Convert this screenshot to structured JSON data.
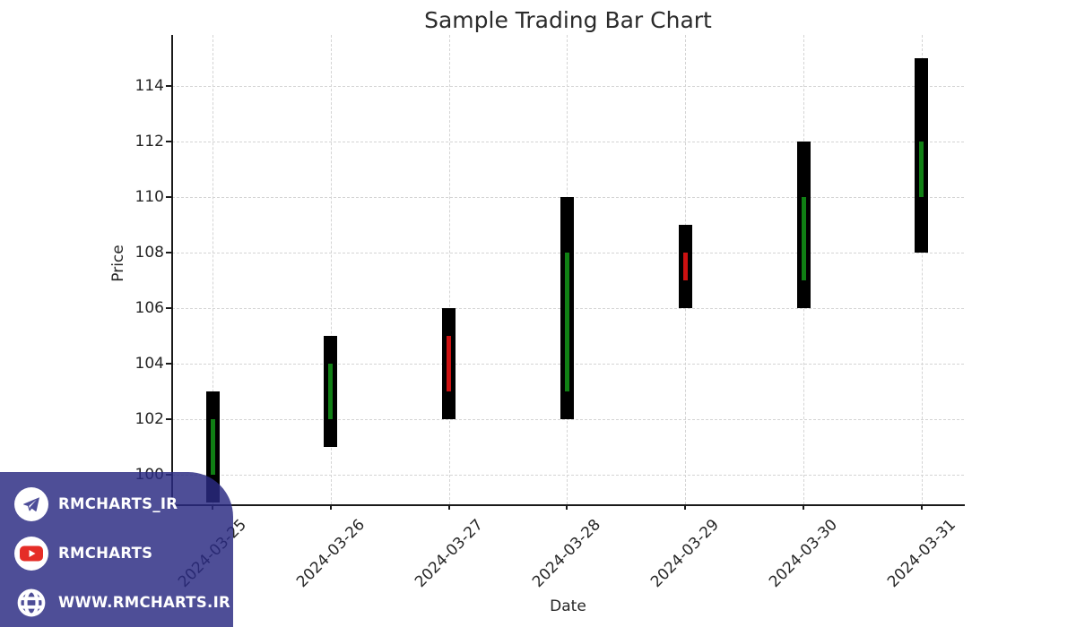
{
  "title": "Sample Trading Bar Chart",
  "chart_data": {
    "type": "bar",
    "subtype": "ohlc-trading-bars",
    "title": "Sample Trading Bar Chart",
    "xlabel": "Date",
    "ylabel": "Price",
    "grid": true,
    "legend": false,
    "ylim": [
      98.95,
      115.85
    ],
    "yticks": [
      100,
      102,
      104,
      106,
      108,
      110,
      112,
      114
    ],
    "categories": [
      "2024-03-25",
      "2024-03-26",
      "2024-03-27",
      "2024-03-28",
      "2024-03-29",
      "2024-03-30",
      "2024-03-31"
    ],
    "ohlc": [
      {
        "date": "2024-03-25",
        "open": 100,
        "high": 103,
        "low": 99,
        "close": 102
      },
      {
        "date": "2024-03-26",
        "open": 102,
        "high": 105,
        "low": 101,
        "close": 104
      },
      {
        "date": "2024-03-27",
        "open": 105,
        "high": 106,
        "low": 102,
        "close": 103
      },
      {
        "date": "2024-03-28",
        "open": 103,
        "high": 110,
        "low": 102,
        "close": 108
      },
      {
        "date": "2024-03-29",
        "open": 108,
        "high": 109,
        "low": 106,
        "close": 107
      },
      {
        "date": "2024-03-30",
        "open": 107,
        "high": 112,
        "low": 106,
        "close": 110
      },
      {
        "date": "2024-03-31",
        "open": 110,
        "high": 115,
        "low": 108,
        "close": 112
      }
    ],
    "colors": {
      "bar": "#000000",
      "up": "#108014",
      "down": "#cc1111",
      "grid": "#d4d4d4"
    }
  },
  "watermark": {
    "panel_color": "rgba(42,42,130,0.83)",
    "items": [
      {
        "icon": "telegram-icon",
        "label": "RMCHARTS_IR"
      },
      {
        "icon": "youtube-icon",
        "label": "RMCHARTS"
      },
      {
        "icon": "globe-icon",
        "label": "WWW.RMCHARTS.IR"
      }
    ]
  }
}
